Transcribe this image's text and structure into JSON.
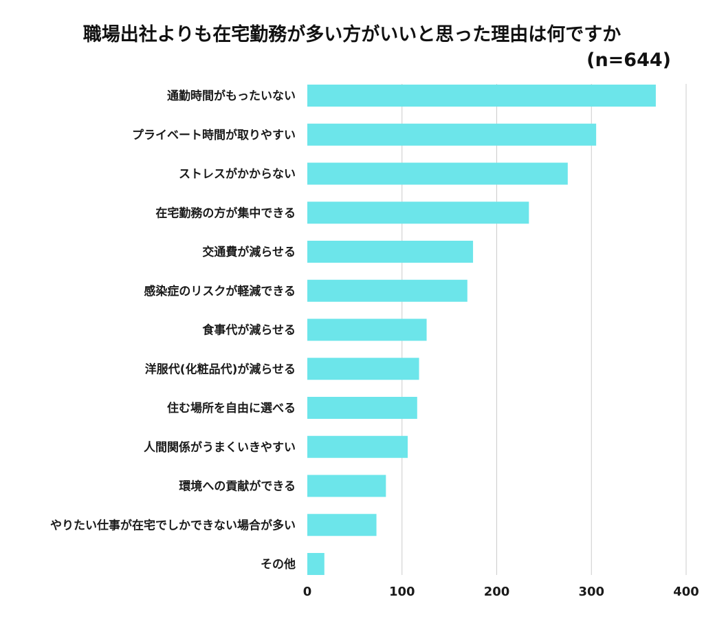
{
  "chart_data": {
    "type": "bar",
    "orientation": "horizontal",
    "title": "職場出社よりも在宅勤務が多い方がいいと思った理由は何ですか",
    "subtitle": "(n=644)",
    "categories": [
      "通勤時間がもったいない",
      "プライベート時間が取りやすい",
      "ストレスがかからない",
      "在宅勤務の方が集中できる",
      "交通費が減らせる",
      "感染症のリスクが軽減できる",
      "食事代が減らせる",
      "洋服代(化粧品代)が減らせる",
      "住む場所を自由に選べる",
      "人間関係がうまくいきやすい",
      "環境への貢献ができる",
      "やりたい仕事が在宅でしかできない場合が多い",
      "その他"
    ],
    "values": [
      368,
      305,
      275,
      234,
      175,
      169,
      126,
      118,
      116,
      106,
      83,
      73,
      18
    ],
    "xlim": [
      0,
      400
    ],
    "xticks": [
      "0",
      "100",
      "200",
      "300",
      "400"
    ],
    "grid": true,
    "bar_color": "#6ce5ea"
  }
}
